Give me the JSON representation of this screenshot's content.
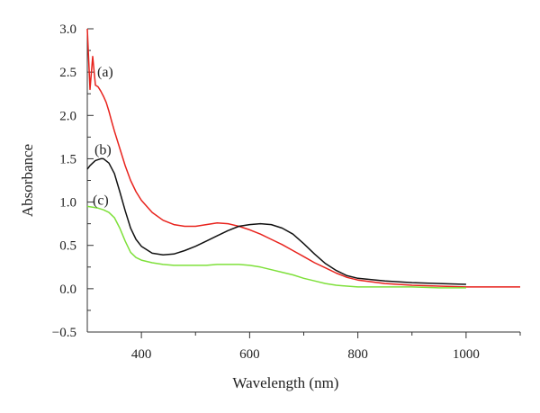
{
  "chart_data": {
    "type": "line",
    "xlabel": "Wavelength (nm)",
    "ylabel": "Absorbance",
    "xlim": [
      300,
      1100
    ],
    "ylim": [
      -0.5,
      3.0
    ],
    "x_ticks": [
      400,
      600,
      800,
      1000
    ],
    "y_ticks": [
      3.0,
      2.5,
      2.0,
      1.5,
      1.0,
      0.5,
      0.0,
      -0.5
    ],
    "x_tick_labels": [
      "400",
      "600",
      "800",
      "1000"
    ],
    "y_tick_labels": [
      "3.0",
      "2.5",
      "2.0",
      "1.5",
      "1.0",
      "0.5",
      "0.0",
      "−0.5"
    ],
    "grid": false,
    "legend": "none",
    "series": [
      {
        "label": "(a)",
        "color": "#e8231d",
        "x": [
          300,
          305,
          310,
          315,
          320,
          325,
          330,
          335,
          340,
          345,
          350,
          360,
          370,
          380,
          390,
          400,
          420,
          440,
          460,
          480,
          500,
          520,
          540,
          560,
          580,
          600,
          620,
          640,
          660,
          680,
          700,
          720,
          740,
          760,
          780,
          800,
          850,
          900,
          950,
          1000,
          1050,
          1100
        ],
        "y": [
          3.0,
          2.3,
          2.68,
          2.35,
          2.33,
          2.28,
          2.22,
          2.15,
          2.05,
          1.93,
          1.82,
          1.62,
          1.42,
          1.25,
          1.12,
          1.02,
          0.88,
          0.79,
          0.74,
          0.72,
          0.72,
          0.74,
          0.76,
          0.75,
          0.72,
          0.68,
          0.63,
          0.57,
          0.51,
          0.44,
          0.37,
          0.3,
          0.24,
          0.18,
          0.13,
          0.1,
          0.06,
          0.04,
          0.03,
          0.02,
          0.02,
          0.02
        ]
      },
      {
        "label": "(b)",
        "color": "#111111",
        "x": [
          300,
          305,
          310,
          315,
          320,
          325,
          330,
          340,
          350,
          360,
          370,
          380,
          390,
          400,
          420,
          440,
          460,
          480,
          500,
          520,
          540,
          560,
          580,
          600,
          620,
          640,
          660,
          680,
          700,
          720,
          740,
          760,
          780,
          800,
          850,
          900,
          950,
          1000
        ],
        "y": [
          1.38,
          1.42,
          1.45,
          1.48,
          1.49,
          1.5,
          1.5,
          1.45,
          1.33,
          1.12,
          0.9,
          0.7,
          0.57,
          0.49,
          0.41,
          0.39,
          0.4,
          0.44,
          0.49,
          0.55,
          0.61,
          0.67,
          0.72,
          0.74,
          0.75,
          0.74,
          0.7,
          0.63,
          0.52,
          0.4,
          0.29,
          0.21,
          0.15,
          0.12,
          0.09,
          0.07,
          0.06,
          0.05
        ]
      },
      {
        "label": "(c)",
        "color": "#7ee03a",
        "x": [
          300,
          310,
          320,
          330,
          340,
          350,
          360,
          370,
          380,
          390,
          400,
          420,
          440,
          460,
          480,
          500,
          520,
          540,
          560,
          580,
          600,
          620,
          640,
          660,
          680,
          700,
          720,
          740,
          760,
          780,
          800,
          850,
          900,
          950,
          1000
        ],
        "y": [
          0.95,
          0.94,
          0.93,
          0.91,
          0.88,
          0.82,
          0.7,
          0.55,
          0.42,
          0.36,
          0.33,
          0.3,
          0.28,
          0.27,
          0.27,
          0.27,
          0.27,
          0.28,
          0.28,
          0.28,
          0.27,
          0.25,
          0.22,
          0.19,
          0.16,
          0.12,
          0.09,
          0.06,
          0.04,
          0.03,
          0.02,
          0.02,
          0.02,
          0.01,
          0.01
        ]
      }
    ]
  }
}
